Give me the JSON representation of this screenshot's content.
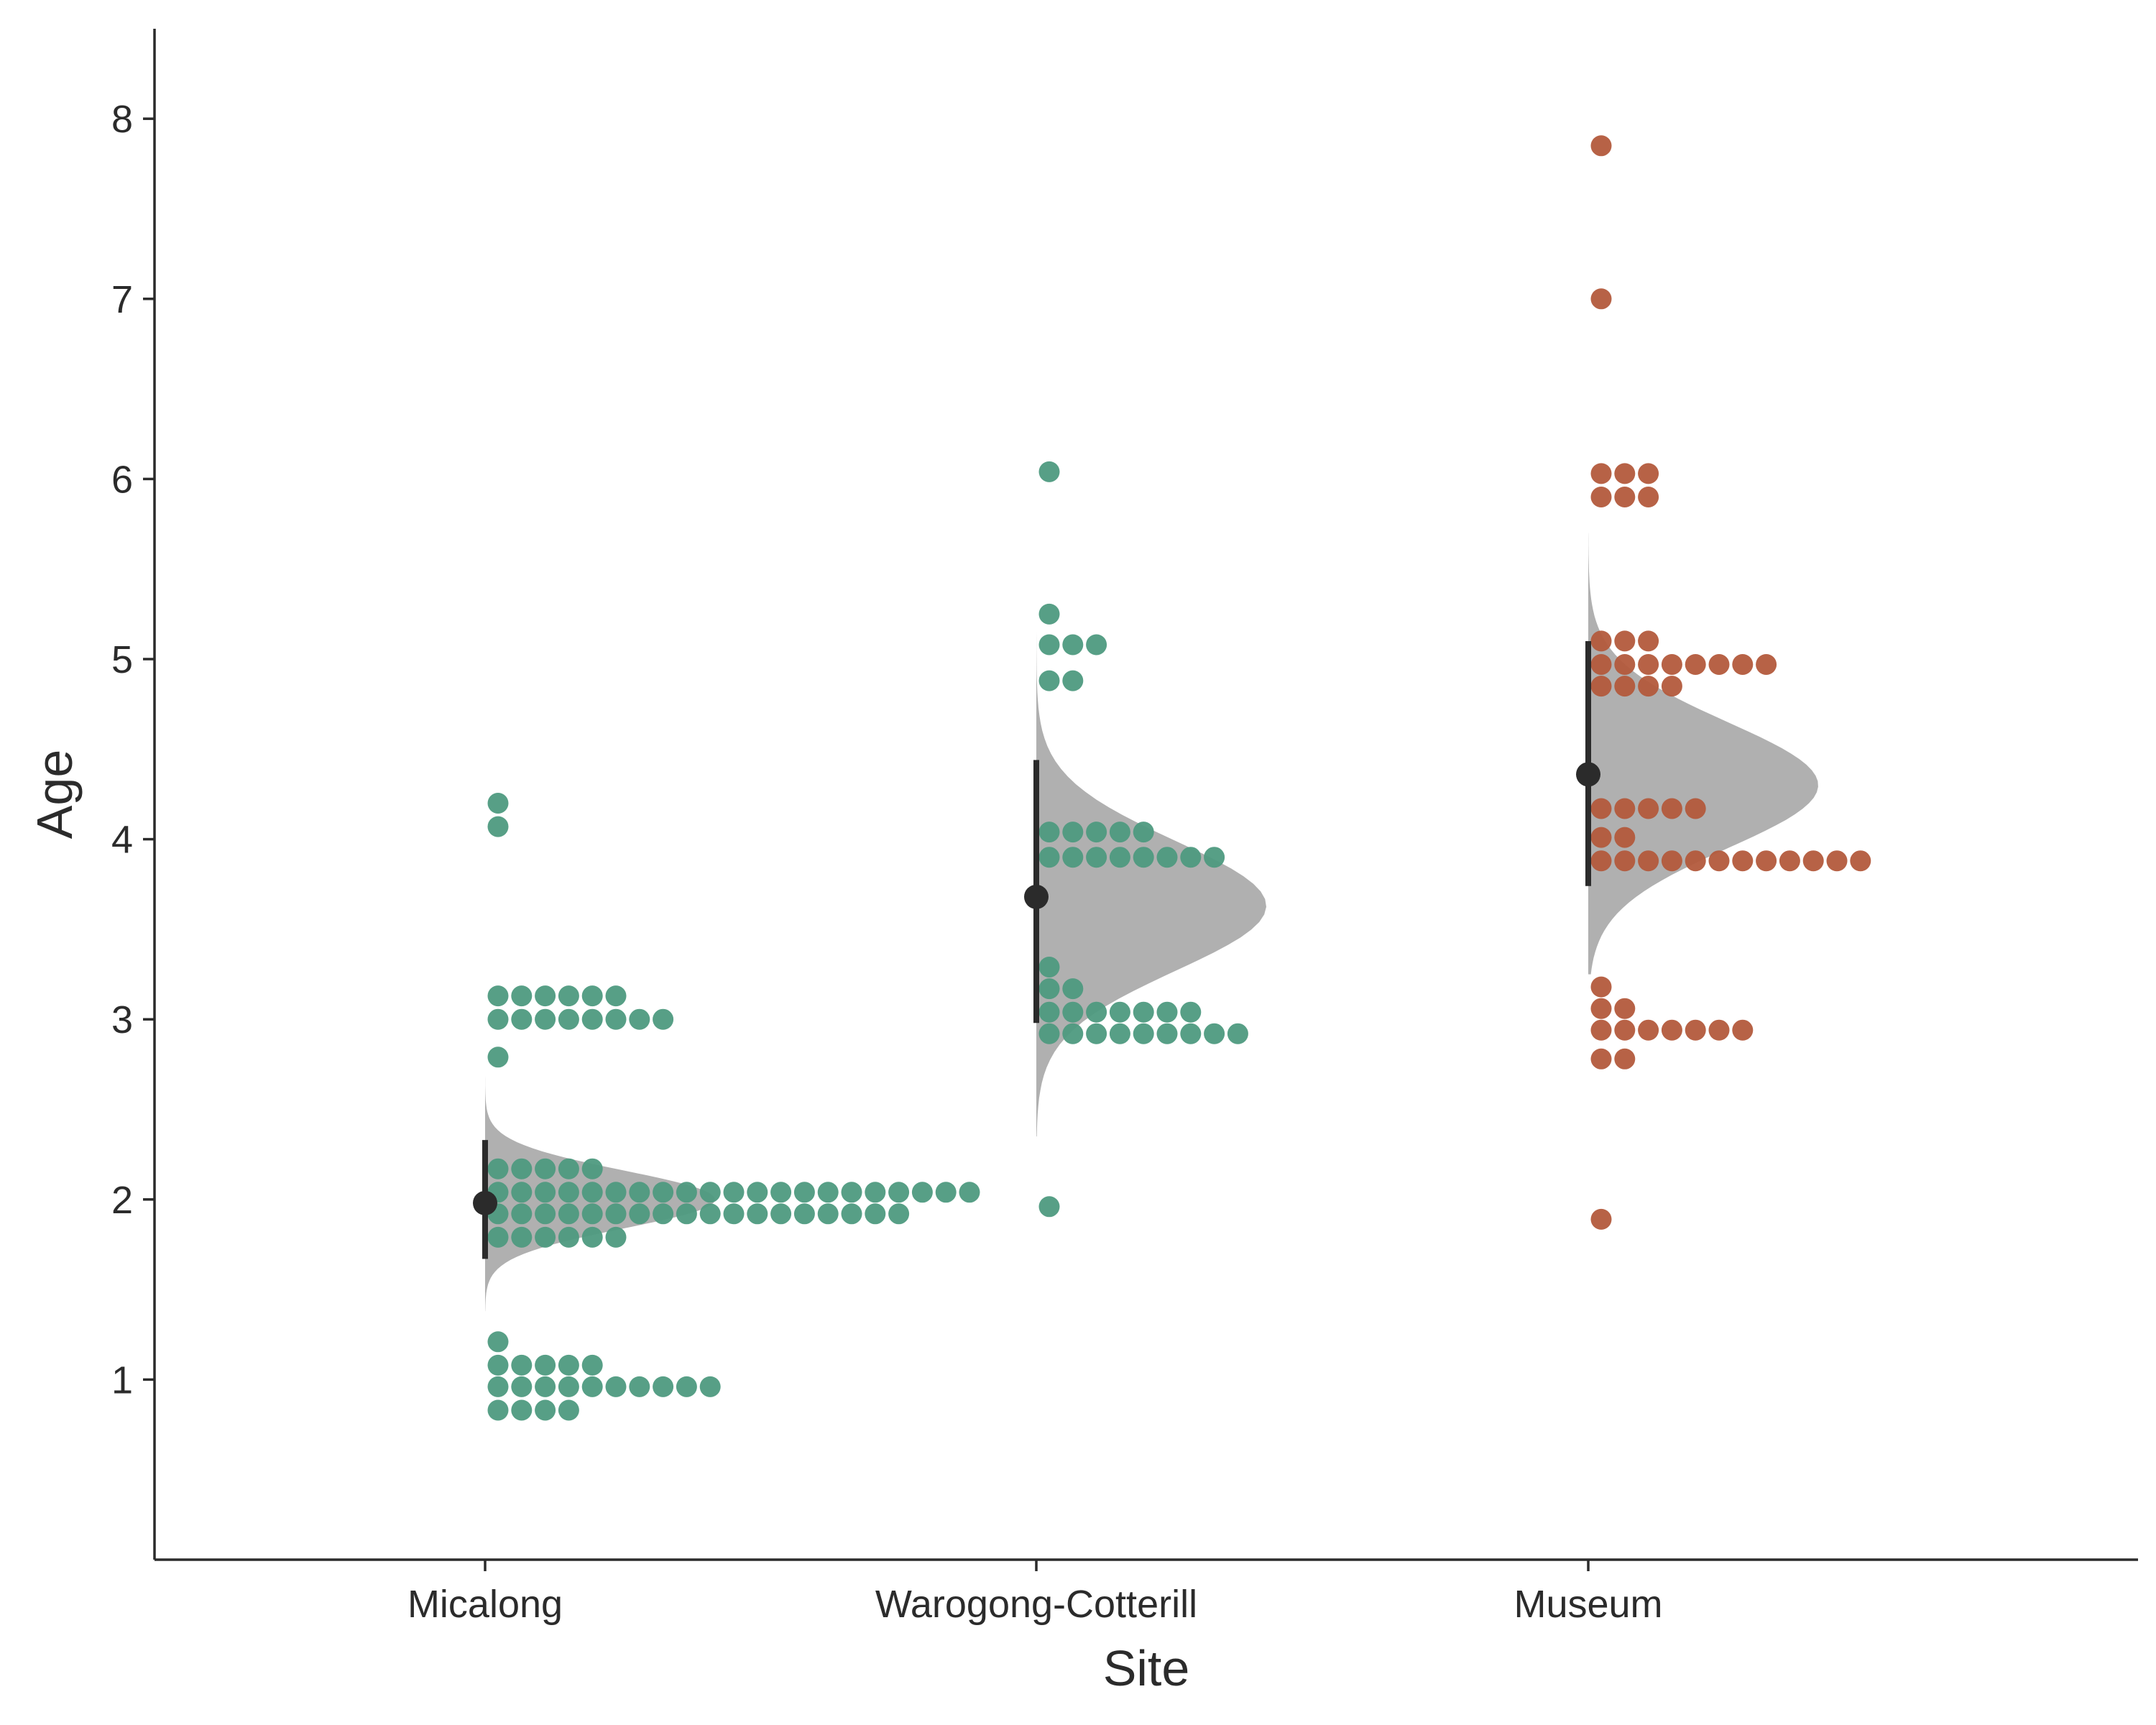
{
  "chart_data": {
    "type": "raincloud",
    "title": "",
    "xlabel": "Site",
    "ylabel": "Age",
    "ylim": [
      0,
      8.5
    ],
    "y_ticks": [
      1,
      2,
      3,
      4,
      5,
      6,
      7,
      8
    ],
    "grid": false,
    "categories": [
      "Micalong",
      "Warogong-Cotterill",
      "Museum"
    ],
    "colors": {
      "Micalong": "#4e9a7f",
      "Warogong-Cotterill": "#4e9a7f",
      "Museum": "#b35a3c",
      "density": "#b0b0b0",
      "summary": "#2b2b2b",
      "axis": "#2b2b2b"
    },
    "series": [
      {
        "name": "Micalong",
        "mean": 1.98,
        "interval": [
          1.67,
          2.33
        ],
        "density_mode": 2.0,
        "density_range": [
          1.38,
          2.72
        ],
        "bins": [
          {
            "y": 4.2,
            "n": 1
          },
          {
            "y": 4.07,
            "n": 1
          },
          {
            "y": 3.13,
            "n": 6
          },
          {
            "y": 3.0,
            "n": 8
          },
          {
            "y": 2.79,
            "n": 1
          },
          {
            "y": 2.17,
            "n": 5
          },
          {
            "y": 2.04,
            "n": 21
          },
          {
            "y": 1.92,
            "n": 18
          },
          {
            "y": 1.79,
            "n": 6
          },
          {
            "y": 1.21,
            "n": 1
          },
          {
            "y": 1.08,
            "n": 5
          },
          {
            "y": 0.96,
            "n": 10
          },
          {
            "y": 0.83,
            "n": 4
          }
        ]
      },
      {
        "name": "Warogong-Cotterill",
        "mean": 3.68,
        "interval": [
          2.98,
          4.44
        ],
        "density_mode": 3.63,
        "density_range": [
          2.35,
          5.75
        ],
        "bins": [
          {
            "y": 6.04,
            "n": 1
          },
          {
            "y": 5.25,
            "n": 1
          },
          {
            "y": 5.08,
            "n": 3
          },
          {
            "y": 4.88,
            "n": 2
          },
          {
            "y": 4.04,
            "n": 5
          },
          {
            "y": 3.9,
            "n": 8
          },
          {
            "y": 3.29,
            "n": 1
          },
          {
            "y": 3.17,
            "n": 2
          },
          {
            "y": 3.04,
            "n": 7
          },
          {
            "y": 2.92,
            "n": 9
          },
          {
            "y": 1.96,
            "n": 1
          }
        ]
      },
      {
        "name": "Museum",
        "mean": 4.36,
        "interval": [
          3.74,
          5.1
        ],
        "density_mode": 4.3,
        "density_range": [
          3.25,
          5.7
        ],
        "bins": [
          {
            "y": 7.85,
            "n": 1
          },
          {
            "y": 7.0,
            "n": 1
          },
          {
            "y": 6.03,
            "n": 3
          },
          {
            "y": 5.9,
            "n": 3
          },
          {
            "y": 5.1,
            "n": 3
          },
          {
            "y": 4.97,
            "n": 8
          },
          {
            "y": 4.85,
            "n": 4
          },
          {
            "y": 4.17,
            "n": 5
          },
          {
            "y": 4.01,
            "n": 2
          },
          {
            "y": 3.88,
            "n": 12
          },
          {
            "y": 3.18,
            "n": 1
          },
          {
            "y": 3.06,
            "n": 2
          },
          {
            "y": 2.94,
            "n": 7
          },
          {
            "y": 2.78,
            "n": 2
          },
          {
            "y": 1.89,
            "n": 1
          }
        ]
      }
    ]
  }
}
